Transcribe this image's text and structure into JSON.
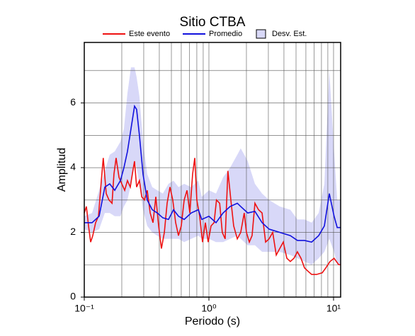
{
  "chart_data": {
    "type": "line",
    "title": "Sitio CTBA",
    "xlabel": "Periodo (s)",
    "ylabel": "Amplitud",
    "xlog": true,
    "grid": true,
    "legend": "top",
    "xlim": [
      0.1,
      11.4
    ],
    "ylim": [
      0,
      7.87
    ],
    "xticks": [
      {
        "value": 0.1,
        "label": "10⁻¹"
      },
      {
        "value": 1,
        "label": "10⁰"
      },
      {
        "value": 10,
        "label": "10¹"
      }
    ],
    "xgrid": [
      0.2,
      0.3,
      0.4,
      0.5,
      0.6,
      0.7,
      0.8,
      0.9,
      2,
      3,
      4,
      5,
      6,
      7,
      8,
      9
    ],
    "yticks": [
      0,
      2,
      4,
      6
    ],
    "ygrid": [
      1,
      3,
      5,
      7
    ],
    "band": {
      "name": "Desv. Est.",
      "color": "#d8d8f8",
      "x": [
        0.1,
        0.1155,
        0.1316,
        0.1462,
        0.16,
        0.1755,
        0.195,
        0.208,
        0.222,
        0.237,
        0.253,
        0.263,
        0.277,
        0.296,
        0.32,
        0.351,
        0.385,
        0.427,
        0.474,
        0.52,
        0.57,
        0.633,
        0.721,
        0.822,
        0.877,
        1.0,
        1.14,
        1.3,
        1.48,
        1.69,
        1.8,
        2.05,
        2.34,
        2.67,
        3.04,
        3.7,
        4.5,
        5.13,
        5.85,
        6.67,
        7.6,
        8.44,
        9.25,
        10.1,
        10.7,
        11.4
      ],
      "lower": [
        2.1,
        2.0,
        2.1,
        2.6,
        2.6,
        2.5,
        2.5,
        2.8,
        3.0,
        3.5,
        4.2,
        4.0,
        3.5,
        2.7,
        2.2,
        2.0,
        1.9,
        1.8,
        1.8,
        1.8,
        1.8,
        1.7,
        1.8,
        1.9,
        1.8,
        1.8,
        1.7,
        1.7,
        1.8,
        1.9,
        1.8,
        1.6,
        1.6,
        1.4,
        1.4,
        1.4,
        1.3,
        1.2,
        1.1,
        1.0,
        1.2,
        1.4,
        1.8,
        1.4,
        1.0,
        1.0
      ],
      "upper": [
        2.5,
        2.6,
        3.3,
        3.9,
        4.4,
        4.5,
        4.8,
        5.2,
        6.3,
        7.1,
        7.1,
        6.8,
        6.2,
        4.8,
        3.8,
        3.4,
        3.3,
        3.2,
        3.5,
        3.6,
        3.4,
        3.5,
        3.4,
        3.6,
        3.1,
        3.3,
        3.2,
        3.7,
        4.0,
        4.4,
        4.6,
        4.2,
        3.5,
        3.2,
        3.0,
        2.8,
        2.7,
        2.4,
        2.4,
        2.3,
        2.6,
        3.5,
        7.0,
        4.5,
        3.0,
        3.0
      ]
    },
    "series": [
      {
        "name": "Este evento",
        "color": "#ee1111",
        "x": [
          0.1,
          0.104,
          0.1082,
          0.1125,
          0.117,
          0.1233,
          0.13,
          0.137,
          0.142,
          0.15,
          0.158,
          0.167,
          0.173,
          0.18,
          0.19,
          0.2,
          0.211,
          0.222,
          0.234,
          0.243,
          0.253,
          0.263,
          0.277,
          0.289,
          0.304,
          0.32,
          0.338,
          0.356,
          0.375,
          0.395,
          0.416,
          0.439,
          0.462,
          0.487,
          0.513,
          0.541,
          0.57,
          0.6,
          0.633,
          0.667,
          0.703,
          0.74,
          0.77,
          0.8,
          0.843,
          0.889,
          0.937,
          0.987,
          1.04,
          1.1,
          1.15,
          1.22,
          1.28,
          1.35,
          1.42,
          1.5,
          1.58,
          1.69,
          1.8,
          1.92,
          2.0,
          2.11,
          2.22,
          2.34,
          2.5,
          2.67,
          2.85,
          3.04,
          3.25,
          3.47,
          3.7,
          3.95,
          4.22,
          4.5,
          4.81,
          5.13,
          5.48,
          5.85,
          6.24,
          6.67,
          7.31,
          8.11,
          8.66,
          9.37,
          10.1,
          11.0,
          11.4
        ],
        "values": [
          2.6,
          2.8,
          2.2,
          1.7,
          1.9,
          2.3,
          2.5,
          3.6,
          4.3,
          3.2,
          3.0,
          2.9,
          3.8,
          4.3,
          3.7,
          3.5,
          3.3,
          3.6,
          3.4,
          3.8,
          4.2,
          3.4,
          3.6,
          3.1,
          3.0,
          3.3,
          2.6,
          2.3,
          3.1,
          2.2,
          1.5,
          2.0,
          2.9,
          3.4,
          3.0,
          2.3,
          1.9,
          2.2,
          3.0,
          3.3,
          2.6,
          3.8,
          4.3,
          3.0,
          2.5,
          1.7,
          2.3,
          1.7,
          2.2,
          2.3,
          3.0,
          2.9,
          2.0,
          1.8,
          3.9,
          3.0,
          2.2,
          1.8,
          2.0,
          2.6,
          2.0,
          1.7,
          1.9,
          2.9,
          2.7,
          2.6,
          1.7,
          1.8,
          2.0,
          1.3,
          1.5,
          1.7,
          1.2,
          1.1,
          1.2,
          1.4,
          1.2,
          0.9,
          0.8,
          0.7,
          0.7,
          0.75,
          0.9,
          1.1,
          1.2,
          1.0,
          1.0
        ]
      },
      {
        "name": "Promedio",
        "color": "#1111dd",
        "x": [
          0.1,
          0.1155,
          0.1316,
          0.1462,
          0.16,
          0.1755,
          0.195,
          0.208,
          0.222,
          0.237,
          0.253,
          0.263,
          0.277,
          0.296,
          0.32,
          0.351,
          0.385,
          0.427,
          0.474,
          0.52,
          0.57,
          0.633,
          0.721,
          0.822,
          0.877,
          1.0,
          1.14,
          1.3,
          1.48,
          1.69,
          1.8,
          2.05,
          2.34,
          2.67,
          3.04,
          3.7,
          4.5,
          5.13,
          5.85,
          6.67,
          7.6,
          8.44,
          9.25,
          10.1,
          10.7,
          11.4
        ],
        "values": [
          2.3,
          2.3,
          2.5,
          3.4,
          3.5,
          3.3,
          3.6,
          4.0,
          4.5,
          5.2,
          5.9,
          5.8,
          5.0,
          3.8,
          3.0,
          2.7,
          2.6,
          2.45,
          2.4,
          2.7,
          2.5,
          2.4,
          2.6,
          2.7,
          2.4,
          2.5,
          2.3,
          2.6,
          2.8,
          2.9,
          2.8,
          2.6,
          2.65,
          2.3,
          2.1,
          2.0,
          1.9,
          1.75,
          1.75,
          1.7,
          1.9,
          2.2,
          3.2,
          2.5,
          2.15,
          2.15
        ]
      }
    ]
  }
}
